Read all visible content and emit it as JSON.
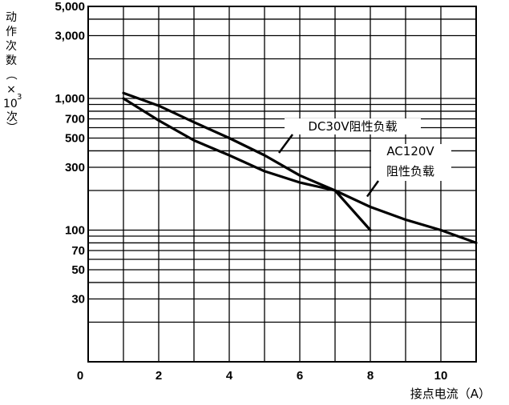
{
  "chart_data": {
    "type": "line",
    "ylabel_chars": [
      "动",
      "作",
      "次",
      "数",
      "（",
      "×"
    ],
    "ylabel_exp_base": "10",
    "ylabel_exp_power": "3",
    "ylabel_unit_end": "次）",
    "xlabel": "接点电流（A）",
    "x_ticks": [
      "0",
      "2",
      "4",
      "6",
      "8",
      "10"
    ],
    "y_ticks": [
      "5,000",
      "3,000",
      "1,000",
      "700",
      "500",
      "300",
      "100",
      "70",
      "50",
      "30"
    ],
    "xlim": [
      0,
      11
    ],
    "ylim": [
      10,
      5000
    ],
    "yscale": "log",
    "grid": true,
    "series": [
      {
        "name": "DC30V阻性负载",
        "x": [
          1,
          2,
          3,
          4,
          5,
          6,
          7,
          8
        ],
        "values": [
          1100,
          880,
          660,
          500,
          370,
          260,
          200,
          100
        ]
      },
      {
        "name_line1": "AC120V",
        "name_line2": "阻性负载",
        "x": [
          1,
          2,
          3,
          4,
          5,
          6,
          7,
          8,
          9,
          10,
          11
        ],
        "values": [
          1000,
          680,
          480,
          370,
          280,
          230,
          200,
          150,
          120,
          100,
          80
        ]
      }
    ]
  }
}
